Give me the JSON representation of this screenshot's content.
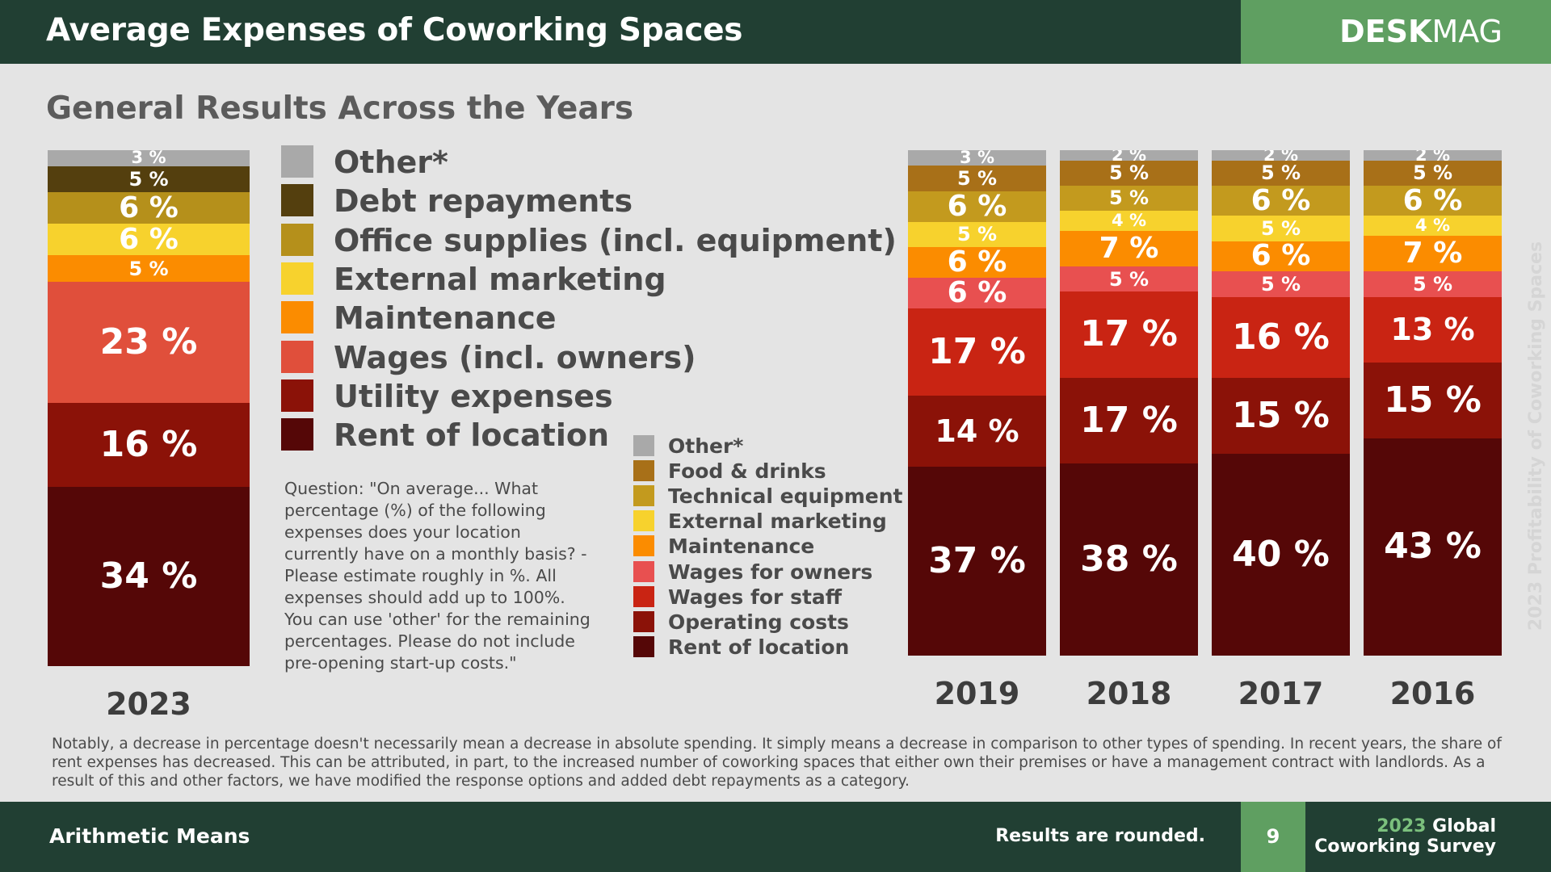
{
  "header": {
    "title": "Average Expenses of Coworking Spaces",
    "brand_bold": "DESK",
    "brand_light": "MAG"
  },
  "subtitle": "General Results Across the Years",
  "colors": {
    "header_bg": "#213f33",
    "brand_green": "#5f9f61",
    "background": "#e4e4e4"
  },
  "legend_2023": [
    {
      "label": "Other*",
      "color": "#a9a9a9"
    },
    {
      "label": "Debt repayments",
      "color": "#543f0e"
    },
    {
      "label": "Office supplies (incl. equipment)",
      "color": "#b5901b"
    },
    {
      "label": "External marketing",
      "color": "#f7d22d"
    },
    {
      "label": "Maintenance",
      "color": "#fb8c00"
    },
    {
      "label": "Wages (incl. owners)",
      "color": "#e04f3b"
    },
    {
      "label": "Utility expenses",
      "color": "#8b1208"
    },
    {
      "label": "Rent of location",
      "color": "#550707"
    }
  ],
  "legend_prev": [
    {
      "label": "Other*",
      "color": "#a9a9a9"
    },
    {
      "label": "Food & drinks",
      "color": "#a87018"
    },
    {
      "label": "Technical equipment",
      "color": "#c39a1e"
    },
    {
      "label": "External marketing",
      "color": "#f7d22d"
    },
    {
      "label": "Maintenance",
      "color": "#fb8c00"
    },
    {
      "label": "Wages for owners",
      "color": "#e85050"
    },
    {
      "label": "Wages for staff",
      "color": "#c92413"
    },
    {
      "label": "Operating costs",
      "color": "#8b1208"
    },
    {
      "label": "Rent of location",
      "color": "#550707"
    }
  ],
  "question": "Question: \"On average... What percentage (%) of the following expenses does your location currently have on a monthly basis? - Please estimate roughly in %. All expenses should add up to 100%. You can use 'other' for the remaining percentages. Please do not include pre-opening start-up costs.\"",
  "chart_data": [
    {
      "type": "bar",
      "stacked": true,
      "unit": "%",
      "title": "General Results Across the Years",
      "categories": [
        "2023"
      ],
      "series": [
        {
          "name": "Rent of location",
          "values": [
            34
          ],
          "color": "#550707"
        },
        {
          "name": "Utility expenses",
          "values": [
            16
          ],
          "color": "#8b1208"
        },
        {
          "name": "Wages (incl. owners)",
          "values": [
            23
          ],
          "color": "#e04f3b"
        },
        {
          "name": "Maintenance",
          "values": [
            5
          ],
          "color": "#fb8c00"
        },
        {
          "name": "External marketing",
          "values": [
            6
          ],
          "color": "#f7d22d"
        },
        {
          "name": "Office supplies (incl. equipment)",
          "values": [
            6
          ],
          "color": "#b5901b"
        },
        {
          "name": "Debt repayments",
          "values": [
            5
          ],
          "color": "#543f0e"
        },
        {
          "name": "Other*",
          "values": [
            3
          ],
          "color": "#a9a9a9"
        }
      ]
    },
    {
      "type": "bar",
      "stacked": true,
      "unit": "%",
      "categories": [
        "2019",
        "2018",
        "2017",
        "2016"
      ],
      "series": [
        {
          "name": "Rent of location",
          "values": [
            37,
            38,
            40,
            43
          ],
          "color": "#550707"
        },
        {
          "name": "Operating costs",
          "values": [
            14,
            17,
            15,
            15
          ],
          "color": "#8b1208"
        },
        {
          "name": "Wages for staff",
          "values": [
            17,
            17,
            16,
            13
          ],
          "color": "#c92413"
        },
        {
          "name": "Wages for owners",
          "values": [
            6,
            5,
            5,
            5
          ],
          "color": "#e85050"
        },
        {
          "name": "Maintenance",
          "values": [
            6,
            7,
            6,
            7
          ],
          "color": "#fb8c00"
        },
        {
          "name": "External marketing",
          "values": [
            5,
            4,
            5,
            4
          ],
          "color": "#f7d22d"
        },
        {
          "name": "Technical equipment",
          "values": [
            6,
            5,
            6,
            6
          ],
          "color": "#c39a1e"
        },
        {
          "name": "Food & drinks",
          "values": [
            5,
            5,
            5,
            5
          ],
          "color": "#a87018"
        },
        {
          "name": "Other*",
          "values": [
            3,
            2,
            2,
            2
          ],
          "color": "#a9a9a9"
        }
      ]
    }
  ],
  "side_text": "2023 Profitability of Coworking Spaces",
  "note": "Notably, a decrease in percentage doesn't necessarily mean a decrease in absolute spending. It simply means a decrease in comparison to other types of spending. In recent years, the share of rent expenses has decreased. This can be attributed, in part, to the increased number of coworking spaces that either own their premises or have a management contract with landlords. As a result of this and other factors, we have modified the response options and added debt repayments as a category.",
  "footer": {
    "left": "Arithmetic Means",
    "rounded": "Results are rounded.",
    "page": "9",
    "survey_year": "2023",
    "survey_line1": "Global",
    "survey_line2": "Coworking Survey"
  }
}
